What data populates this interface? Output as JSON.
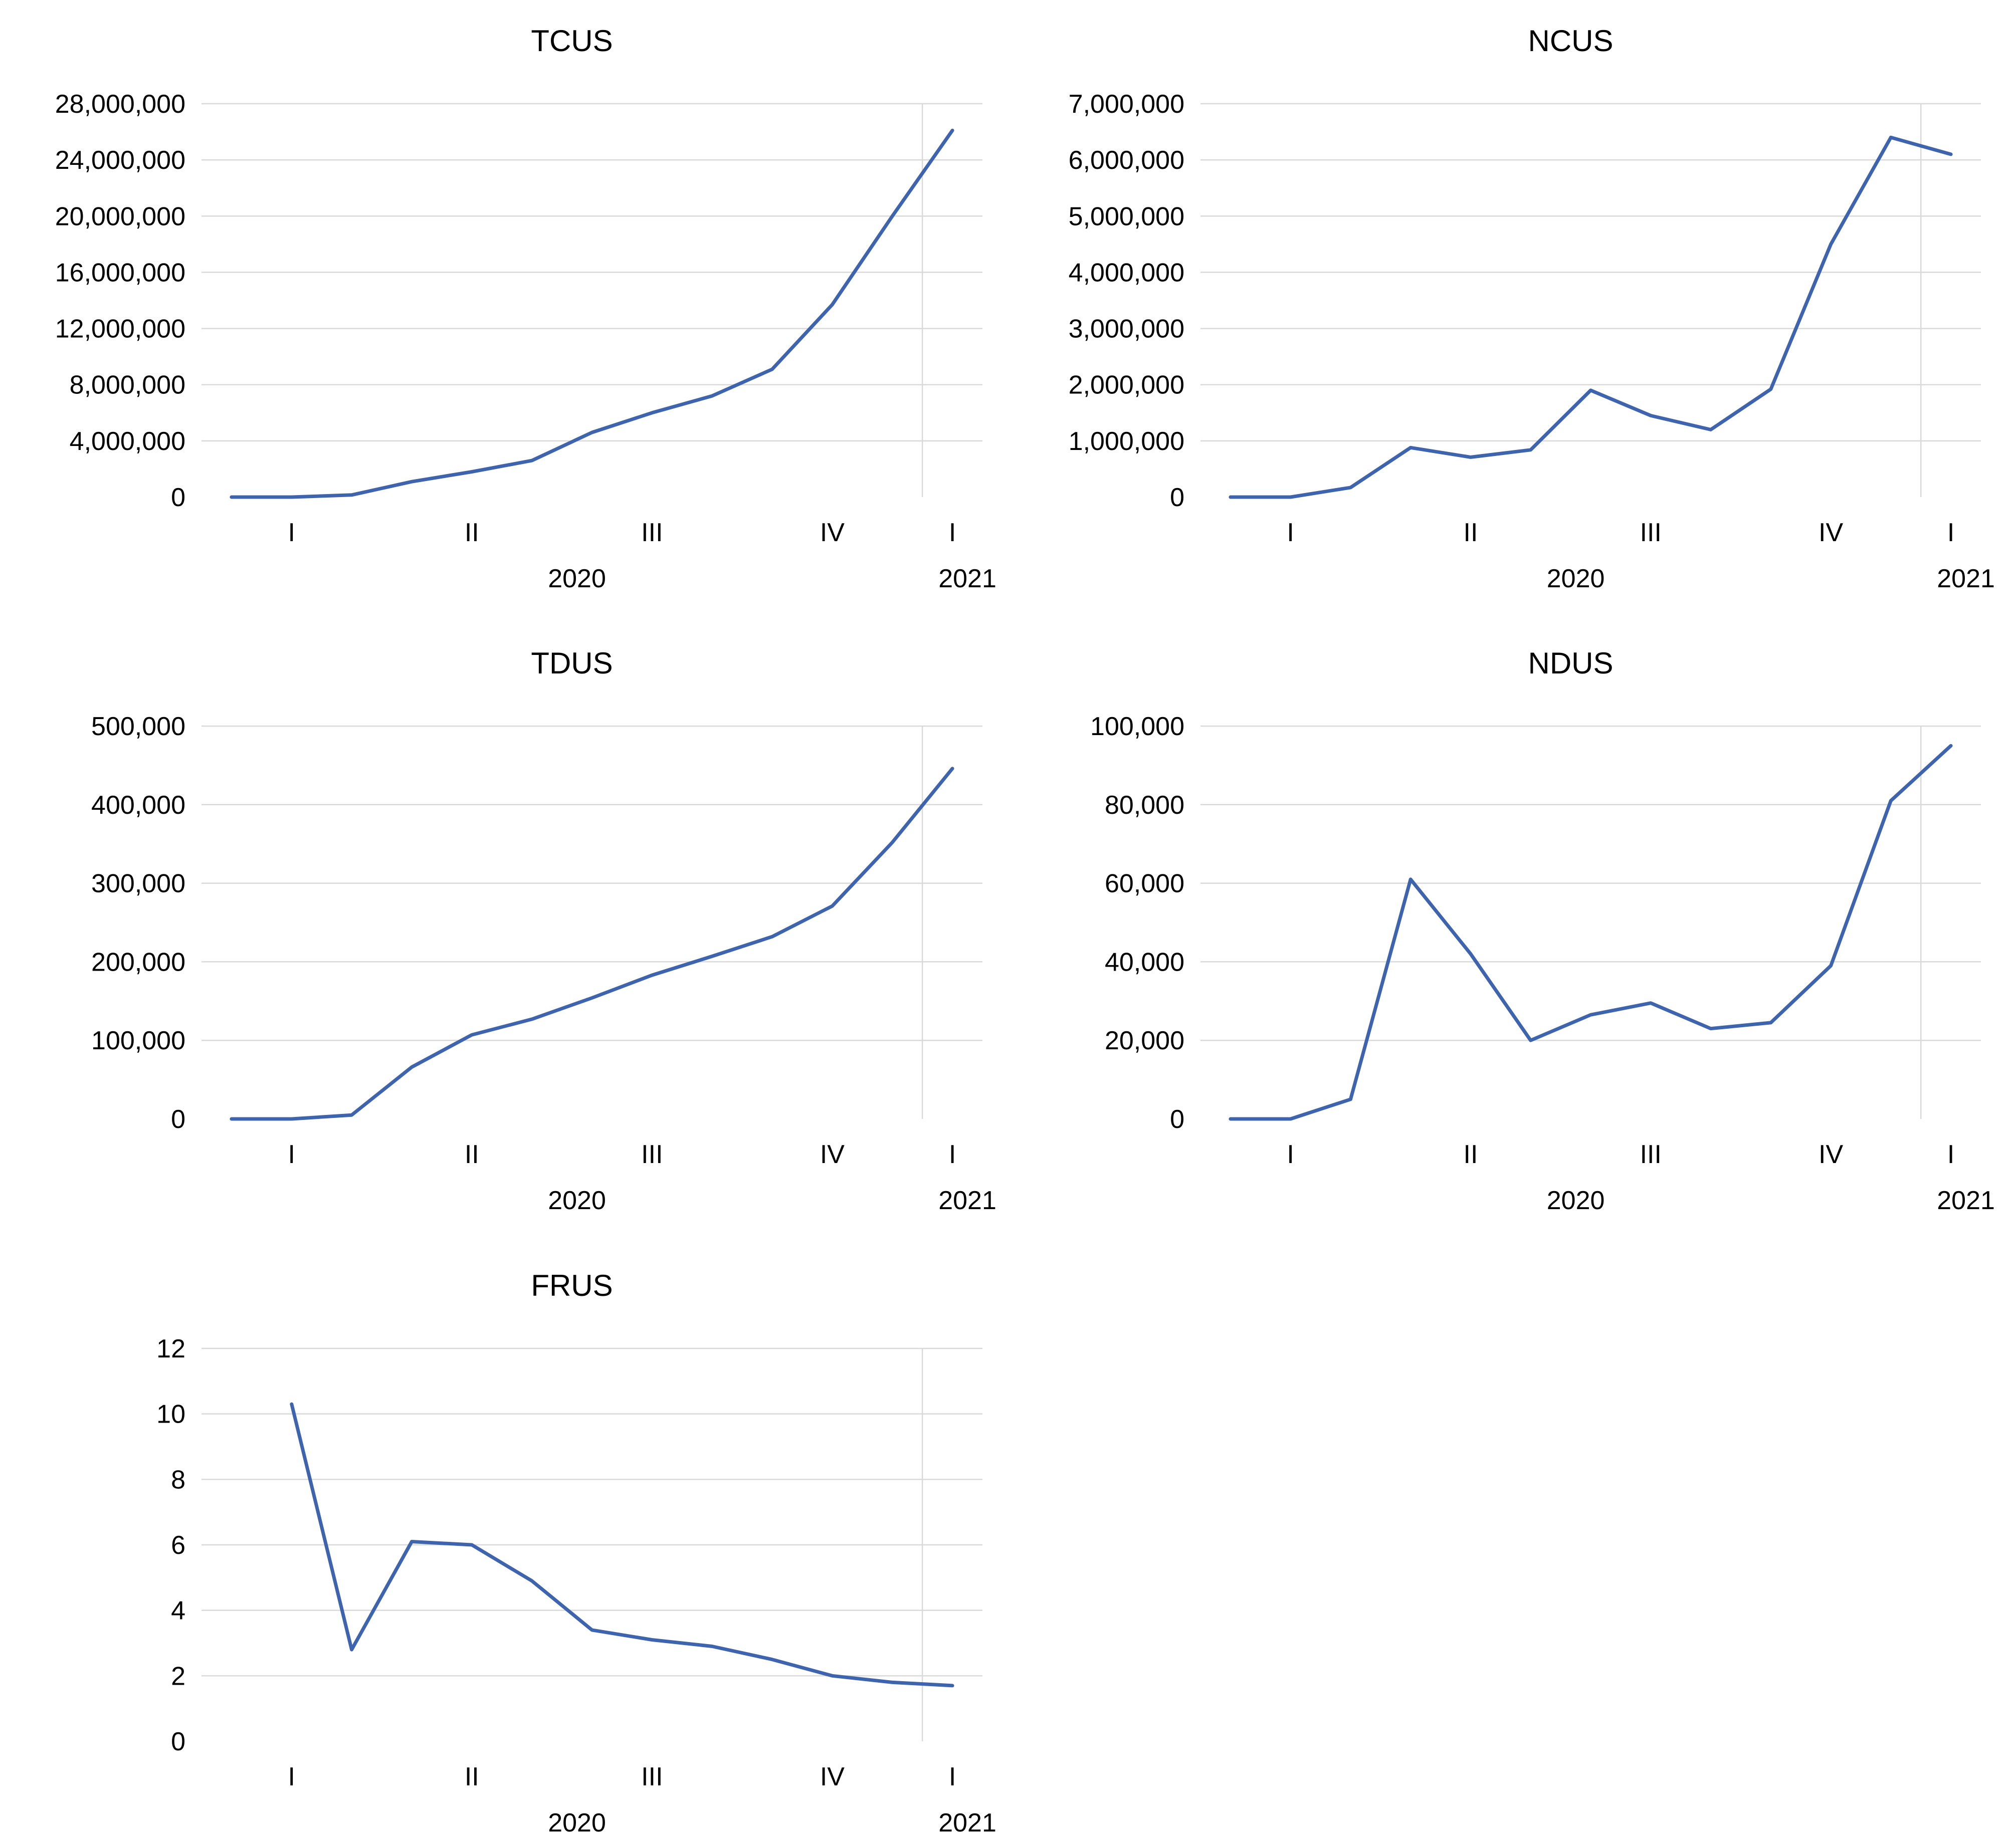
{
  "colors": {
    "line": "#3d64ad",
    "gridline": "#d9d9d9",
    "axis": "#bfbfbf"
  },
  "chart_data": [
    {
      "type": "line",
      "title": "TCUS",
      "x": [
        1,
        2,
        3,
        4,
        5,
        6,
        7,
        8,
        9,
        10,
        11,
        12,
        13
      ],
      "values": [
        0,
        0,
        150000,
        1100000,
        1800000,
        2600000,
        4600000,
        6000000,
        7200000,
        9100000,
        13700000,
        20000000,
        26100000
      ],
      "ylim": [
        0,
        28000000
      ],
      "yticks": [
        0,
        4000000,
        8000000,
        12000000,
        16000000,
        20000000,
        24000000,
        28000000
      ],
      "ytick_labels": [
        "0",
        "4,000,000",
        "8,000,000",
        "12,000,000",
        "16,000,000",
        "20,000,000",
        "24,000,000",
        "28,000,000"
      ],
      "xtick_labels": [
        "I",
        "II",
        "III",
        "IV",
        "I"
      ],
      "year_labels": [
        "2020",
        "2021"
      ],
      "grid": true
    },
    {
      "type": "line",
      "title": "NCUS",
      "x": [
        1,
        2,
        3,
        4,
        5,
        6,
        7,
        8,
        9,
        10,
        11,
        12,
        13
      ],
      "values": [
        0,
        0,
        170000,
        880000,
        710000,
        840000,
        1900000,
        1450000,
        1200000,
        1920000,
        4500000,
        6400000,
        6100000
      ],
      "ylim": [
        0,
        7000000
      ],
      "yticks": [
        0,
        1000000,
        2000000,
        3000000,
        4000000,
        5000000,
        6000000,
        7000000
      ],
      "ytick_labels": [
        "0",
        "1,000,000",
        "2,000,000",
        "3,000,000",
        "4,000,000",
        "5,000,000",
        "6,000,000",
        "7,000,000"
      ],
      "xtick_labels": [
        "I",
        "II",
        "III",
        "IV",
        "I"
      ],
      "year_labels": [
        "2020",
        "2021"
      ],
      "grid": true
    },
    {
      "type": "line",
      "title": "TDUS",
      "x": [
        1,
        2,
        3,
        4,
        5,
        6,
        7,
        8,
        9,
        10,
        11,
        12,
        13
      ],
      "values": [
        0,
        0,
        5000,
        66000,
        107000,
        127000,
        154000,
        183000,
        207000,
        232000,
        271000,
        352000,
        446000
      ],
      "ylim": [
        0,
        500000
      ],
      "yticks": [
        0,
        100000,
        200000,
        300000,
        400000,
        500000
      ],
      "ytick_labels": [
        "0",
        "100,000",
        "200,000",
        "300,000",
        "400,000",
        "500,000"
      ],
      "xtick_labels": [
        "I",
        "II",
        "III",
        "IV",
        "I"
      ],
      "year_labels": [
        "2020",
        "2021"
      ],
      "grid": true
    },
    {
      "type": "line",
      "title": "NDUS",
      "x": [
        1,
        2,
        3,
        4,
        5,
        6,
        7,
        8,
        9,
        10,
        11,
        12,
        13
      ],
      "values": [
        0,
        0,
        5000,
        61000,
        42000,
        20000,
        26500,
        29500,
        23000,
        24500,
        39000,
        81000,
        95000
      ],
      "ylim": [
        0,
        100000
      ],
      "yticks": [
        0,
        20000,
        40000,
        60000,
        80000,
        100000
      ],
      "ytick_labels": [
        "0",
        "20,000",
        "40,000",
        "60,000",
        "80,000",
        "100,000"
      ],
      "xtick_labels": [
        "I",
        "II",
        "III",
        "IV",
        "I"
      ],
      "year_labels": [
        "2020",
        "2021"
      ],
      "grid": true
    },
    {
      "type": "line",
      "title": "FRUS",
      "x": [
        2,
        3,
        4,
        5,
        6,
        7,
        8,
        9,
        10,
        11,
        12,
        13
      ],
      "values": [
        10.3,
        2.8,
        6.1,
        6.0,
        4.9,
        3.4,
        3.1,
        2.9,
        2.5,
        2.0,
        1.8,
        1.7
      ],
      "ylim": [
        0,
        12
      ],
      "yticks": [
        0,
        2,
        4,
        6,
        8,
        10,
        12
      ],
      "ytick_labels": [
        "0",
        "2",
        "4",
        "6",
        "8",
        "10",
        "12"
      ],
      "xtick_labels": [
        "I",
        "II",
        "III",
        "IV",
        "I"
      ],
      "year_labels": [
        "2020",
        "2021"
      ],
      "grid": true
    }
  ]
}
